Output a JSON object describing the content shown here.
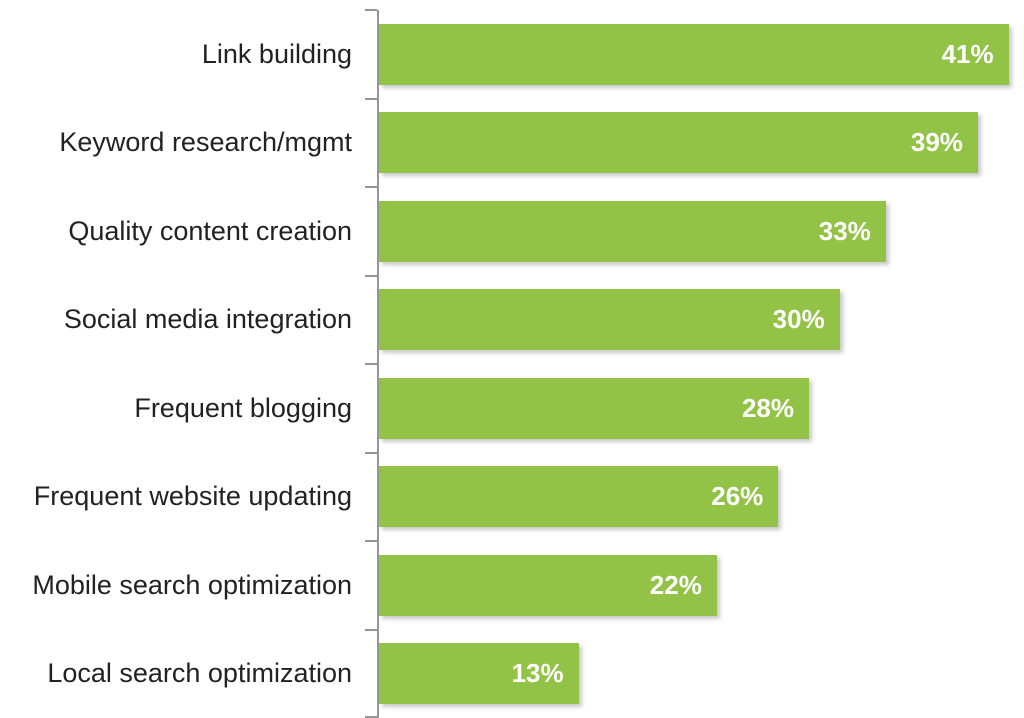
{
  "chart_data": {
    "type": "bar",
    "orientation": "horizontal",
    "title": "",
    "xlabel": "",
    "ylabel": "",
    "categories": [
      "Link building",
      "Keyword research/mgmt",
      "Quality content creation",
      "Social media integration",
      "Frequent blogging",
      "Frequent website updating",
      "Mobile search optimization",
      "Local search optimization"
    ],
    "values": [
      41,
      39,
      33,
      30,
      28,
      26,
      22,
      13
    ],
    "value_labels": [
      "41%",
      "39%",
      "33%",
      "30%",
      "28%",
      "26%",
      "22%",
      "13%"
    ],
    "xlim": [
      0,
      42
    ],
    "grid": false,
    "legend": false,
    "bar_color": "#92C346",
    "axis_color": "#969696",
    "category_label_color": "#222222",
    "value_label_color": "#FFFFFF"
  }
}
